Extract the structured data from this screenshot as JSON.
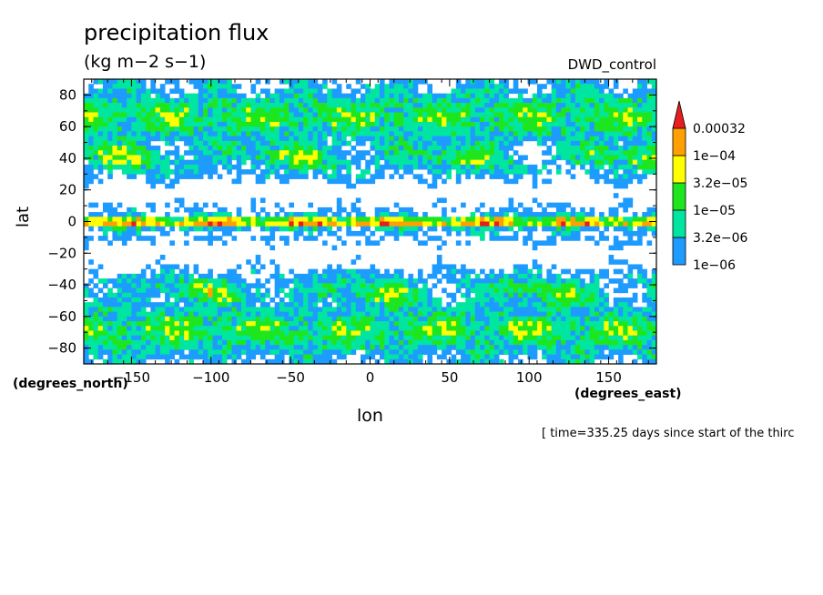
{
  "chart_data": {
    "type": "heatmap",
    "title": "precipitation flux",
    "units": "(kg m−2 s−1)",
    "run_label": "DWD_control",
    "xlabel": "lon",
    "ylabel": "lat",
    "x_unit": "(degrees_east)",
    "y_unit": "(degrees_north)",
    "time_note": "[ time=335.25 days since start of the thirc",
    "xlim": [
      -180,
      180
    ],
    "ylim": [
      -90,
      90
    ],
    "x_ticks": [
      -150,
      -100,
      -50,
      0,
      50,
      100,
      150
    ],
    "x_tick_labels": [
      "−150",
      "−100",
      "−50",
      "0",
      "50",
      "100",
      "150"
    ],
    "y_ticks": [
      80,
      60,
      40,
      20,
      0,
      -20,
      -40,
      -60,
      -80
    ],
    "y_tick_labels": [
      "80",
      "60",
      "40",
      "20",
      "0",
      "−20",
      "−40",
      "−60",
      "−80"
    ],
    "colorbar": {
      "levels": [
        "1e−06",
        "3.2e−06",
        "1e−05",
        "3.2e−05",
        "1e−04",
        "0.00032"
      ],
      "colors": [
        "#1e9bff",
        "#00e6a0",
        "#1ee61e",
        "#ffff00",
        "#ffa000",
        "#e61e1e"
      ],
      "extend": "max"
    }
  }
}
